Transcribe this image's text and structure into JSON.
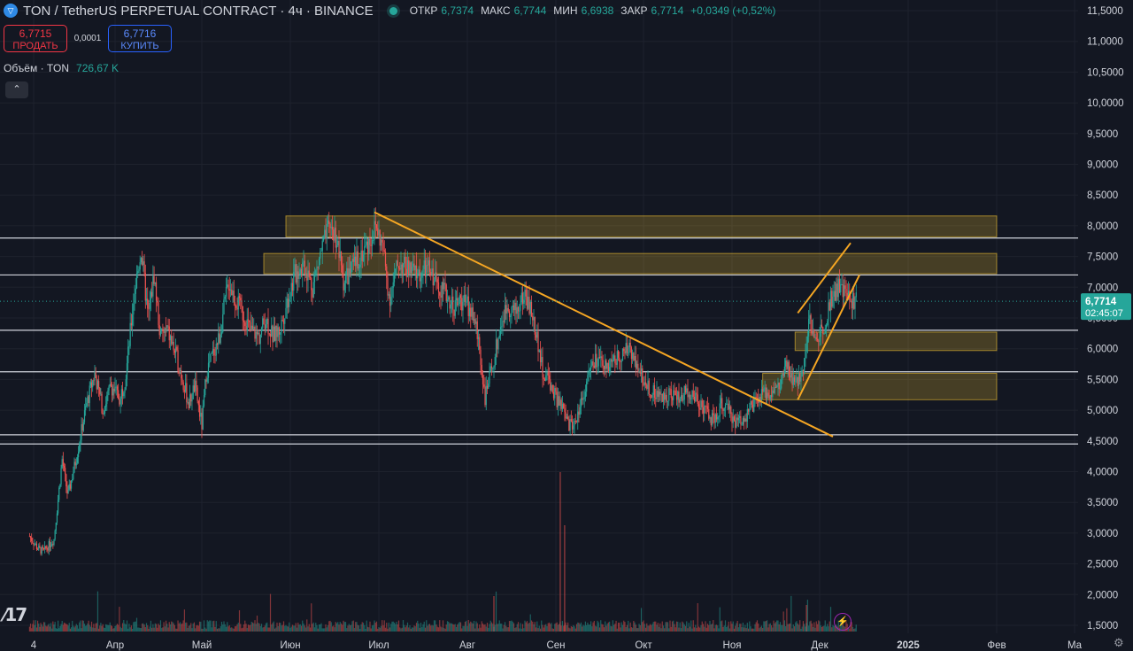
{
  "header": {
    "symbol_title": "TON / TetherUS PERPETUAL CONTRACT · 4ч · BINANCE",
    "ohlc": [
      {
        "key": "ОТКР",
        "value": "6,7374"
      },
      {
        "key": "МАКС",
        "value": "6,7744"
      },
      {
        "key": "МИН",
        "value": "6,6938"
      },
      {
        "key": "ЗАКР",
        "value": "6,7714"
      }
    ],
    "change": "+0,0349 (+0,52%)"
  },
  "trade": {
    "sell_price": "6,7715",
    "sell_label": "ПРОДАТЬ",
    "spread": "0,0001",
    "buy_price": "6,7716",
    "buy_label": "КУПИТЬ"
  },
  "volume": {
    "label": "Объём · TON",
    "value": "726,67 K"
  },
  "icons": {
    "collapse": "chevron-up-icon",
    "logo": "tradingview-logo",
    "flash": "lightning-icon",
    "settings": "gear-icon"
  },
  "colors": {
    "background": "#131722",
    "up": "#26a69a",
    "down": "#ef5350",
    "trendline": "#f5a623",
    "zone": "#ffcc33"
  },
  "chart_data": {
    "type": "candlestick",
    "timeframe": "4h",
    "y_axis": {
      "min": 1.5,
      "max": 11.5,
      "tick_step": 0.5,
      "tick_labels": [
        "11,5000",
        "11,0000",
        "10,5000",
        "10,0000",
        "9,5000",
        "9,0000",
        "8,5000",
        "8,0000",
        "7,5000",
        "7,0000",
        "6,5000",
        "6,0000",
        "5,5000",
        "5,0000",
        "4,5000",
        "4,0000",
        "3,5000",
        "3,0000",
        "2,5000",
        "2,0000",
        "1,5000"
      ]
    },
    "x_axis": {
      "labels": [
        {
          "text": "4",
          "month": 0.0
        },
        {
          "text": "Апр",
          "month": 1
        },
        {
          "text": "Май",
          "month": 2
        },
        {
          "text": "Июн",
          "month": 3
        },
        {
          "text": "Июл",
          "month": 4
        },
        {
          "text": "Авг",
          "month": 5
        },
        {
          "text": "Сен",
          "month": 6
        },
        {
          "text": "Окт",
          "month": 7
        },
        {
          "text": "Ноя",
          "month": 8
        },
        {
          "text": "Дек",
          "month": 9
        },
        {
          "text": "2025",
          "month": 10
        },
        {
          "text": "Фев",
          "month": 11
        },
        {
          "text": "Ма",
          "month": 12
        }
      ]
    },
    "last_price": {
      "value": 6.7714,
      "label": "6,7714",
      "countdown": "02:45:07"
    },
    "horizontal_levels": [
      {
        "value": 7.8,
        "label": "7,8000"
      },
      {
        "value": 7.2,
        "label": "7,2000"
      },
      {
        "value": 6.3,
        "label": "6,3000"
      },
      {
        "value": 5.625,
        "label": "5,6250"
      },
      {
        "value": 4.6,
        "label": "4,6000"
      },
      {
        "value": 4.45,
        "label": "4,4500"
      }
    ],
    "zones": [
      {
        "from_month": 2.95,
        "to_month": 11.0,
        "low": 7.82,
        "high": 8.16
      },
      {
        "from_month": 2.7,
        "to_month": 11.0,
        "low": 7.22,
        "high": 7.55
      },
      {
        "from_month": 8.72,
        "to_month": 11.0,
        "low": 5.97,
        "high": 6.27
      },
      {
        "from_month": 8.35,
        "to_month": 11.0,
        "low": 5.17,
        "high": 5.6
      }
    ],
    "trendlines": [
      {
        "from": [
          3.95,
          8.22
        ],
        "to": [
          9.15,
          4.57
        ]
      },
      {
        "from": [
          8.75,
          6.58
        ],
        "to": [
          9.35,
          7.72
        ]
      },
      {
        "from": [
          8.75,
          5.17
        ],
        "to": [
          9.45,
          7.2
        ]
      }
    ],
    "price_path": [
      [
        -0.05,
        2.95
      ],
      [
        0.05,
        2.75
      ],
      [
        0.12,
        2.7
      ],
      [
        0.25,
        2.9
      ],
      [
        0.35,
        4.2
      ],
      [
        0.42,
        3.6
      ],
      [
        0.52,
        4.2
      ],
      [
        0.65,
        5.1
      ],
      [
        0.75,
        5.6
      ],
      [
        0.85,
        5.0
      ],
      [
        0.95,
        5.4
      ],
      [
        1.05,
        5.2
      ],
      [
        1.12,
        5.5
      ],
      [
        1.22,
        6.9
      ],
      [
        1.3,
        7.6
      ],
      [
        1.38,
        6.5
      ],
      [
        1.45,
        7.2
      ],
      [
        1.52,
        6.2
      ],
      [
        1.6,
        6.3
      ],
      [
        1.7,
        5.9
      ],
      [
        1.78,
        5.5
      ],
      [
        1.85,
        5.1
      ],
      [
        1.92,
        5.4
      ],
      [
        2.0,
        4.75
      ],
      [
        2.05,
        5.6
      ],
      [
        2.12,
        5.9
      ],
      [
        2.2,
        6.2
      ],
      [
        2.3,
        7.1
      ],
      [
        2.38,
        6.8
      ],
      [
        2.45,
        6.6
      ],
      [
        2.55,
        6.3
      ],
      [
        2.65,
        6.2
      ],
      [
        2.72,
        6.5
      ],
      [
        2.8,
        6.2
      ],
      [
        2.88,
        6.3
      ],
      [
        2.95,
        6.7
      ],
      [
        3.05,
        7.2
      ],
      [
        3.15,
        7.4
      ],
      [
        3.25,
        7.0
      ],
      [
        3.35,
        7.6
      ],
      [
        3.45,
        8.0
      ],
      [
        3.52,
        7.8
      ],
      [
        3.6,
        7.1
      ],
      [
        3.7,
        7.3
      ],
      [
        3.78,
        7.5
      ],
      [
        3.88,
        7.7
      ],
      [
        3.97,
        8.0
      ],
      [
        4.05,
        7.6
      ],
      [
        4.12,
        6.8
      ],
      [
        4.22,
        7.4
      ],
      [
        4.32,
        7.3
      ],
      [
        4.45,
        7.2
      ],
      [
        4.55,
        7.3
      ],
      [
        4.65,
        7.1
      ],
      [
        4.75,
        6.9
      ],
      [
        4.85,
        6.7
      ],
      [
        4.95,
        6.8
      ],
      [
        5.05,
        6.6
      ],
      [
        5.12,
        6.2
      ],
      [
        5.2,
        5.2
      ],
      [
        5.28,
        5.7
      ],
      [
        5.38,
        6.4
      ],
      [
        5.45,
        6.7
      ],
      [
        5.55,
        6.6
      ],
      [
        5.65,
        6.9
      ],
      [
        5.72,
        6.6
      ],
      [
        5.8,
        6.1
      ],
      [
        5.85,
        5.6
      ],
      [
        5.92,
        5.5
      ],
      [
        6.0,
        5.2
      ],
      [
        6.08,
        5.0
      ],
      [
        6.15,
        4.75
      ],
      [
        6.22,
        4.8
      ],
      [
        6.3,
        5.2
      ],
      [
        6.38,
        5.6
      ],
      [
        6.45,
        5.8
      ],
      [
        6.55,
        5.7
      ],
      [
        6.65,
        5.8
      ],
      [
        6.75,
        5.9
      ],
      [
        6.85,
        6.0
      ],
      [
        6.92,
        5.8
      ],
      [
        7.0,
        5.5
      ],
      [
        7.1,
        5.3
      ],
      [
        7.2,
        5.2
      ],
      [
        7.3,
        5.3
      ],
      [
        7.4,
        5.2
      ],
      [
        7.5,
        5.3
      ],
      [
        7.6,
        5.2
      ],
      [
        7.7,
        5.0
      ],
      [
        7.8,
        4.8
      ],
      [
        7.88,
        5.1
      ],
      [
        7.95,
        5.0
      ],
      [
        8.05,
        4.8
      ],
      [
        8.15,
        4.9
      ],
      [
        8.25,
        5.1
      ],
      [
        8.35,
        5.25
      ],
      [
        8.45,
        5.3
      ],
      [
        8.55,
        5.4
      ],
      [
        8.62,
        5.7
      ],
      [
        8.72,
        5.4
      ],
      [
        8.8,
        5.6
      ],
      [
        8.88,
        6.5
      ],
      [
        8.95,
        6.1
      ],
      [
        9.05,
        6.4
      ],
      [
        9.12,
        6.8
      ],
      [
        9.2,
        7.0
      ],
      [
        9.28,
        6.9
      ],
      [
        9.35,
        6.8
      ],
      [
        9.42,
        6.77
      ]
    ],
    "volume_note": "histogram at chart bottom"
  }
}
